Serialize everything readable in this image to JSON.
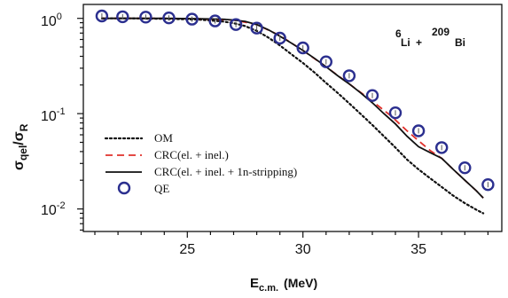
{
  "chart_data": {
    "type": "line",
    "title": "",
    "xlabel": "E_c.m. (MeV)",
    "xlabel_parts": {
      "base": "E",
      "sub": "c.m.",
      "unit": "(MeV)"
    },
    "ylabel_parts": {
      "num": "σ",
      "num_sub": "qel",
      "slash": "/",
      "den": "σ",
      "den_sub": "R"
    },
    "xlim": [
      20.5,
      38.6
    ],
    "ylim": [
      0.0058,
      1.4
    ],
    "yscale": "log",
    "grid": false,
    "legend_position": "bottom-left",
    "annotation": {
      "lead": "6",
      "el1": "Li",
      "plus": "+",
      "sup2": "209",
      "el2": "Bi"
    },
    "x_ticks": [
      25,
      30,
      35
    ],
    "x_tick_labels": [
      "25",
      "30",
      "35"
    ],
    "y_ticks": [
      1,
      0.1,
      0.01
    ],
    "y_tick_labels": [
      {
        "base": "10",
        "exp": "0"
      },
      {
        "base": "10",
        "exp": "-1"
      },
      {
        "base": "10",
        "exp": "-2"
      }
    ],
    "series": [
      {
        "name": "OM",
        "style": "dotted",
        "color": "#111111",
        "x": [
          21.3,
          22.5,
          24.0,
          25.5,
          26.5,
          27.0,
          27.5,
          28.0,
          28.5,
          29.0,
          29.5,
          30.0,
          30.5,
          31.0,
          31.5,
          32.0,
          32.5,
          33.0,
          33.5,
          34.0,
          34.5,
          35.0,
          35.5,
          36.0,
          36.5,
          37.0,
          37.5,
          37.8
        ],
        "y": [
          1.0,
          1.0,
          0.99,
          0.97,
          0.93,
          0.89,
          0.83,
          0.74,
          0.63,
          0.52,
          0.42,
          0.34,
          0.27,
          0.21,
          0.165,
          0.128,
          0.099,
          0.076,
          0.058,
          0.044,
          0.033,
          0.026,
          0.021,
          0.017,
          0.0138,
          0.0115,
          0.0098,
          0.009
        ]
      },
      {
        "name": "CRC(el. + inel.)",
        "style": "dashed",
        "color": "#e0302b",
        "x": [
          21.3,
          22.5,
          24.0,
          25.5,
          27.0,
          28.0,
          29.0,
          30.0,
          31.0,
          32.0,
          33.0,
          33.8,
          34.5,
          35.0,
          35.5,
          36.0,
          36.5,
          37.0,
          37.5,
          37.8
        ],
        "y": [
          1.0,
          1.0,
          1.0,
          0.99,
          0.96,
          0.86,
          0.66,
          0.46,
          0.31,
          0.205,
          0.135,
          0.095,
          0.066,
          0.052,
          0.041,
          0.034,
          0.026,
          0.02,
          0.0155,
          0.013
        ]
      },
      {
        "name": "CRC(el. + inel. + 1n-stripping)",
        "style": "solid",
        "color": "#111111",
        "x": [
          21.3,
          22.5,
          24.0,
          25.5,
          26.5,
          27.0,
          27.5,
          28.0,
          28.5,
          29.0,
          29.5,
          30.0,
          30.5,
          31.0,
          31.5,
          32.0,
          32.5,
          33.0,
          33.5,
          34.0,
          34.5,
          35.0,
          35.5,
          36.0,
          36.5,
          37.0,
          37.5,
          37.8
        ],
        "y": [
          1.0,
          1.0,
          1.0,
          0.99,
          0.98,
          0.96,
          0.93,
          0.86,
          0.76,
          0.65,
          0.55,
          0.46,
          0.38,
          0.31,
          0.25,
          0.205,
          0.165,
          0.13,
          0.1,
          0.078,
          0.058,
          0.045,
          0.039,
          0.034,
          0.026,
          0.02,
          0.0155,
          0.013
        ]
      },
      {
        "name": "QE",
        "style": "marker-circle",
        "color": "#2b2f8f",
        "x": [
          21.3,
          22.2,
          23.2,
          24.2,
          25.2,
          26.2,
          27.1,
          28.0,
          29.0,
          30.0,
          31.0,
          32.0,
          33.0,
          34.0,
          35.0,
          36.0,
          37.0,
          38.0
        ],
        "y": [
          1.06,
          1.04,
          1.03,
          1.01,
          0.98,
          0.94,
          0.86,
          0.79,
          0.62,
          0.49,
          0.35,
          0.25,
          0.155,
          0.102,
          0.066,
          0.044,
          0.027,
          0.018
        ]
      }
    ]
  }
}
